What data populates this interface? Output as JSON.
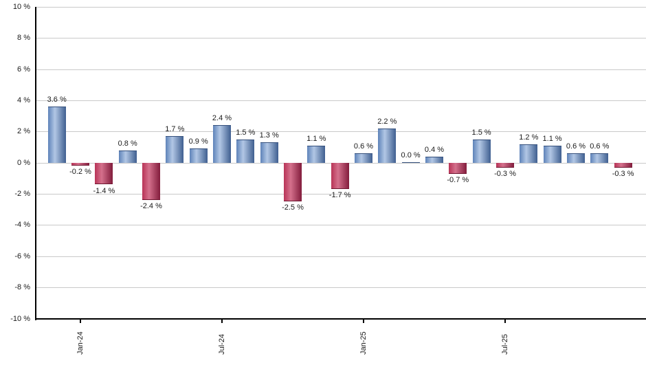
{
  "chart_data": {
    "type": "bar",
    "title": "",
    "unit": "%",
    "values": [
      3.6,
      -0.2,
      -1.4,
      0.8,
      -2.4,
      1.7,
      0.9,
      2.4,
      1.5,
      1.3,
      -2.5,
      1.1,
      -1.7,
      0.6,
      2.2,
      0.0,
      0.4,
      -0.7,
      1.5,
      -0.3,
      1.2,
      1.1,
      0.6,
      0.6,
      -0.3
    ],
    "bar_labels": [
      "3.6 %",
      "-0.2 %",
      "-1.4 %",
      "0.8 %",
      "-2.4 %",
      "1.7 %",
      "0.9 %",
      "2.4 %",
      "1.5 %",
      "1.3 %",
      "-2.5 %",
      "1.1 %",
      "-1.7 %",
      "0.6 %",
      "2.2 %",
      "0.0 %",
      "0.4 %",
      "-0.7 %",
      "1.5 %",
      "-0.3 %",
      "1.2 %",
      "1.1 %",
      "0.6 %",
      "0.6 %",
      "-0.3 %"
    ],
    "x_ticks": [
      {
        "bar_index": 1,
        "label": "Jan-24"
      },
      {
        "bar_index": 7,
        "label": "Jul-24"
      },
      {
        "bar_index": 13,
        "label": "Jan-25"
      },
      {
        "bar_index": 19,
        "label": "Jul-25"
      }
    ],
    "y_axis": {
      "min": -10,
      "max": 10,
      "step": 2,
      "tick_labels": [
        "10 %",
        "8 %",
        "6 %",
        "4 %",
        "2 %",
        "0 %",
        "-2 %",
        "-4 %",
        "-6 %",
        "-8 %",
        "-10 %"
      ]
    },
    "grid": true,
    "legend": false,
    "colors": {
      "positive_gradient": [
        "#5e83b9",
        "#b2c7e5",
        "#3f5f90"
      ],
      "negative_gradient": [
        "#b83457",
        "#d4708c",
        "#821c3c"
      ],
      "positive_edge": "#35507c",
      "negative_edge": "#6f1630",
      "gridline": "#c9c9c9",
      "axis": "#000000",
      "label_text": "#1a1a1a",
      "background": "#ffffff"
    }
  }
}
